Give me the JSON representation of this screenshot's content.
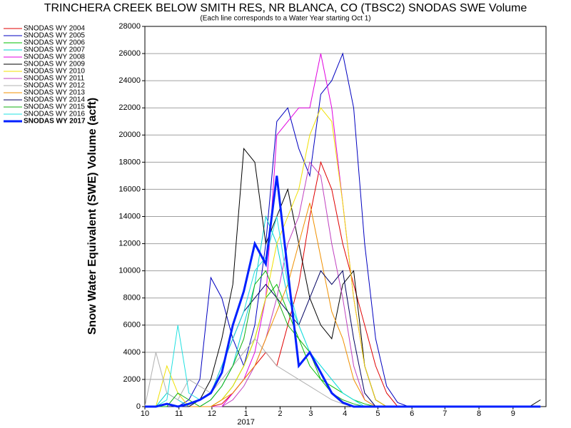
{
  "chart_data": {
    "type": "line",
    "title": "TRINCHERA CREEK BELOW SMITH RES, NR BLANCA, CO (TBSC2) SNODAS SWE Volume",
    "subtitle": "(Each line corresponds to a Water Year starting Oct 1)",
    "y_label": "Snow Water Equivalent (SWE) Volume (acft)",
    "annotation": "2017",
    "x": [
      0,
      10,
      20,
      30,
      40,
      50,
      60,
      70,
      80,
      90,
      100,
      110,
      120,
      130,
      140,
      150,
      160,
      170,
      180,
      190,
      200,
      210,
      220,
      230,
      240,
      250,
      260,
      270,
      280,
      290,
      300,
      310,
      320,
      330,
      340,
      350,
      360
    ],
    "xlim": [
      0,
      365
    ],
    "xticks": [
      {
        "value": 0,
        "label": "10"
      },
      {
        "value": 31,
        "label": "11"
      },
      {
        "value": 61,
        "label": "12"
      },
      {
        "value": 92,
        "label": "1"
      },
      {
        "value": 123,
        "label": "2"
      },
      {
        "value": 151,
        "label": "3"
      },
      {
        "value": 182,
        "label": "4"
      },
      {
        "value": 212,
        "label": "5"
      },
      {
        "value": 243,
        "label": "6"
      },
      {
        "value": 273,
        "label": "7"
      },
      {
        "value": 304,
        "label": "8"
      },
      {
        "value": 335,
        "label": "9"
      }
    ],
    "ylim": [
      0,
      28000
    ],
    "yticks": [
      0,
      2000,
      4000,
      6000,
      8000,
      10000,
      12000,
      14000,
      16000,
      18000,
      20000,
      22000,
      24000,
      26000,
      28000
    ],
    "grid": true,
    "series": [
      {
        "name": "SNODAS WY 2004",
        "color": "#e00000",
        "values": [
          0,
          0,
          0,
          0,
          0,
          0,
          0,
          200,
          1000,
          2000,
          3000,
          4000,
          3000,
          6000,
          9000,
          14000,
          18000,
          16000,
          12000,
          9000,
          6000,
          3000,
          1000,
          0,
          0,
          0,
          0,
          0,
          0,
          0,
          0,
          0,
          0,
          0,
          0,
          0,
          0
        ]
      },
      {
        "name": "SNODAS WY 2005",
        "color": "#0000c0",
        "values": [
          0,
          0,
          0,
          0,
          500,
          2000,
          9500,
          8000,
          5000,
          3000,
          6000,
          12000,
          21000,
          22000,
          19000,
          17000,
          23000,
          24000,
          26000,
          22000,
          12000,
          5000,
          1500,
          300,
          0,
          0,
          0,
          0,
          0,
          0,
          0,
          0,
          0,
          0,
          0,
          0,
          0
        ]
      },
      {
        "name": "SNODAS WY 2006",
        "color": "#00c000",
        "values": [
          0,
          0,
          0,
          0,
          0,
          0,
          0,
          500,
          1500,
          3000,
          5000,
          8000,
          9000,
          7000,
          5000,
          3000,
          2000,
          1500,
          1000,
          500,
          200,
          0,
          0,
          0,
          0,
          0,
          0,
          0,
          0,
          0,
          0,
          0,
          0,
          0,
          0,
          0,
          0
        ]
      },
      {
        "name": "SNODAS WY 2007",
        "color": "#00d0d0",
        "values": [
          0,
          0,
          1000,
          500,
          0,
          0,
          500,
          1500,
          3000,
          6000,
          9000,
          14000,
          12000,
          8000,
          6000,
          4000,
          3000,
          2000,
          1000,
          500,
          0,
          0,
          0,
          0,
          0,
          0,
          0,
          0,
          0,
          0,
          0,
          0,
          0,
          0,
          0,
          0,
          0
        ]
      },
      {
        "name": "SNODAS WY 2008",
        "color": "#e000e0",
        "values": [
          0,
          0,
          0,
          0,
          0,
          0,
          0,
          0,
          1000,
          2000,
          4000,
          8000,
          20000,
          21000,
          22000,
          22000,
          26000,
          22000,
          15000,
          8000,
          3000,
          500,
          0,
          0,
          0,
          0,
          0,
          0,
          0,
          0,
          0,
          0,
          0,
          0,
          0,
          0,
          0
        ]
      },
      {
        "name": "SNODAS WY 2009",
        "color": "#000000",
        "values": [
          0,
          0,
          0,
          0,
          0,
          500,
          2000,
          5000,
          9000,
          19000,
          18000,
          12000,
          14000,
          16000,
          12000,
          8000,
          6000,
          5000,
          9000,
          10000,
          3000,
          500,
          0,
          0,
          0,
          0,
          0,
          0,
          0,
          0,
          0,
          0,
          0,
          0,
          0,
          0,
          500
        ]
      },
      {
        "name": "SNODAS WY 2010",
        "color": "#f0e000",
        "values": [
          0,
          0,
          3000,
          1000,
          0,
          0,
          0,
          500,
          1500,
          3000,
          5000,
          8000,
          12000,
          14000,
          16000,
          20000,
          22000,
          21000,
          15000,
          8000,
          3000,
          500,
          0,
          0,
          0,
          0,
          0,
          0,
          0,
          0,
          0,
          0,
          0,
          0,
          0,
          0,
          0
        ]
      },
      {
        "name": "SNODAS WY 2011",
        "color": "#c040c0",
        "values": [
          0,
          0,
          0,
          0,
          0,
          0,
          0,
          0,
          500,
          1500,
          3000,
          5000,
          8000,
          12000,
          14000,
          18000,
          17000,
          12000,
          8000,
          3000,
          500,
          0,
          0,
          0,
          0,
          0,
          0,
          0,
          0,
          0,
          0,
          0,
          0,
          0,
          0,
          0,
          0
        ]
      },
      {
        "name": "SNODAS WY 2012",
        "color": "#b0b0b0",
        "values": [
          0,
          4000,
          1000,
          500,
          2000,
          1500,
          1000,
          2000,
          3000,
          4000,
          5000,
          4000,
          3000,
          2500,
          2000,
          1500,
          1000,
          500,
          200,
          0,
          0,
          0,
          0,
          0,
          0,
          0,
          0,
          0,
          0,
          0,
          0,
          0,
          0,
          0,
          0,
          0,
          0
        ]
      },
      {
        "name": "SNODAS WY 2013",
        "color": "#f09000",
        "values": [
          0,
          0,
          0,
          0,
          0,
          0,
          0,
          500,
          1000,
          2000,
          3000,
          5000,
          7000,
          9000,
          12000,
          15000,
          11000,
          7000,
          5000,
          2000,
          500,
          0,
          0,
          0,
          0,
          0,
          0,
          0,
          0,
          0,
          0,
          0,
          0,
          0,
          0,
          0,
          0
        ]
      },
      {
        "name": "SNODAS WY 2014",
        "color": "#000060",
        "values": [
          0,
          0,
          0,
          0,
          0,
          500,
          1000,
          3000,
          5000,
          7000,
          8000,
          9000,
          8000,
          7000,
          6000,
          8000,
          10000,
          9000,
          10000,
          5000,
          1000,
          0,
          0,
          0,
          0,
          0,
          0,
          0,
          0,
          0,
          0,
          0,
          0,
          0,
          0,
          0,
          0
        ]
      },
      {
        "name": "SNODAS WY 2015",
        "color": "#10b010",
        "values": [
          0,
          0,
          0,
          1000,
          500,
          0,
          500,
          1500,
          3000,
          5000,
          9000,
          10000,
          8000,
          6000,
          5000,
          4000,
          2000,
          1000,
          500,
          200,
          0,
          0,
          0,
          0,
          0,
          0,
          0,
          0,
          0,
          0,
          0,
          0,
          0,
          0,
          0,
          0,
          0
        ]
      },
      {
        "name": "SNODAS WY 2016",
        "color": "#20e0e0",
        "values": [
          0,
          0,
          500,
          6000,
          1000,
          500,
          1000,
          3000,
          5000,
          7000,
          10000,
          11000,
          14000,
          9000,
          6000,
          4000,
          3000,
          2000,
          1000,
          500,
          0,
          0,
          0,
          0,
          0,
          0,
          0,
          0,
          0,
          0,
          0,
          0,
          0,
          0,
          0,
          0,
          0
        ]
      },
      {
        "name": "SNODAS WY 2017",
        "color": "#0020ff",
        "width": 3,
        "values": [
          0,
          0,
          200,
          0,
          200,
          500,
          1000,
          2500,
          6000,
          8500,
          12000,
          10500,
          17000,
          10000,
          3000,
          4000,
          2500,
          1000,
          300,
          0,
          0,
          0,
          0,
          0,
          0,
          0,
          0,
          0,
          0,
          0,
          0,
          0,
          0,
          0,
          0,
          0,
          0
        ]
      }
    ]
  }
}
